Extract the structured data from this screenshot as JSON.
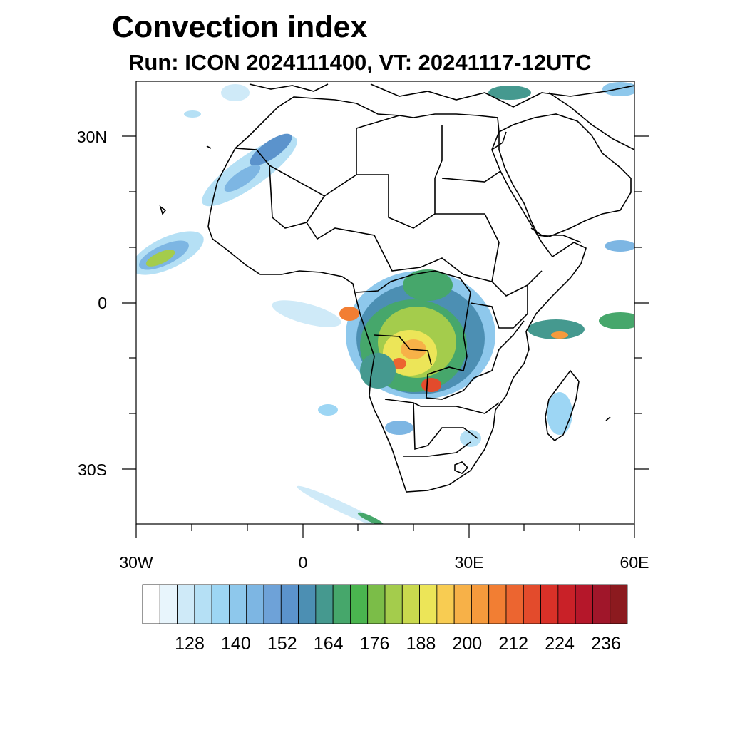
{
  "title": "Convection index",
  "subtitle": "Run: ICON 2024111400,  VT: 20241117-12UTC",
  "axes": {
    "lat_labels": [
      "30N",
      "0",
      "30S"
    ],
    "lon_labels": [
      "30W",
      "0",
      "30E",
      "60E"
    ],
    "lon_range": [
      -30,
      60
    ],
    "lat_range": [
      -40,
      40
    ]
  },
  "colorbar": {
    "labels": [
      "128",
      "140",
      "152",
      "164",
      "176",
      "188",
      "200",
      "212",
      "224",
      "236"
    ],
    "colors": [
      "#ffffff",
      "#e8f5fc",
      "#cfeaf8",
      "#b5e0f5",
      "#9dd6f4",
      "#8ec8ec",
      "#7db6e3",
      "#6ea2d8",
      "#5b93cc",
      "#4c8fb3",
      "#45998f",
      "#46a76b",
      "#4ab54f",
      "#7bbd48",
      "#a4cc4c",
      "#c9d94e",
      "#ece558",
      "#f8cc52",
      "#f7b148",
      "#f59a3c",
      "#f27e33",
      "#ec6530",
      "#e34b2c",
      "#d93128",
      "#c92128",
      "#b5172a",
      "#a0162a",
      "#8c1a1f"
    ]
  }
}
